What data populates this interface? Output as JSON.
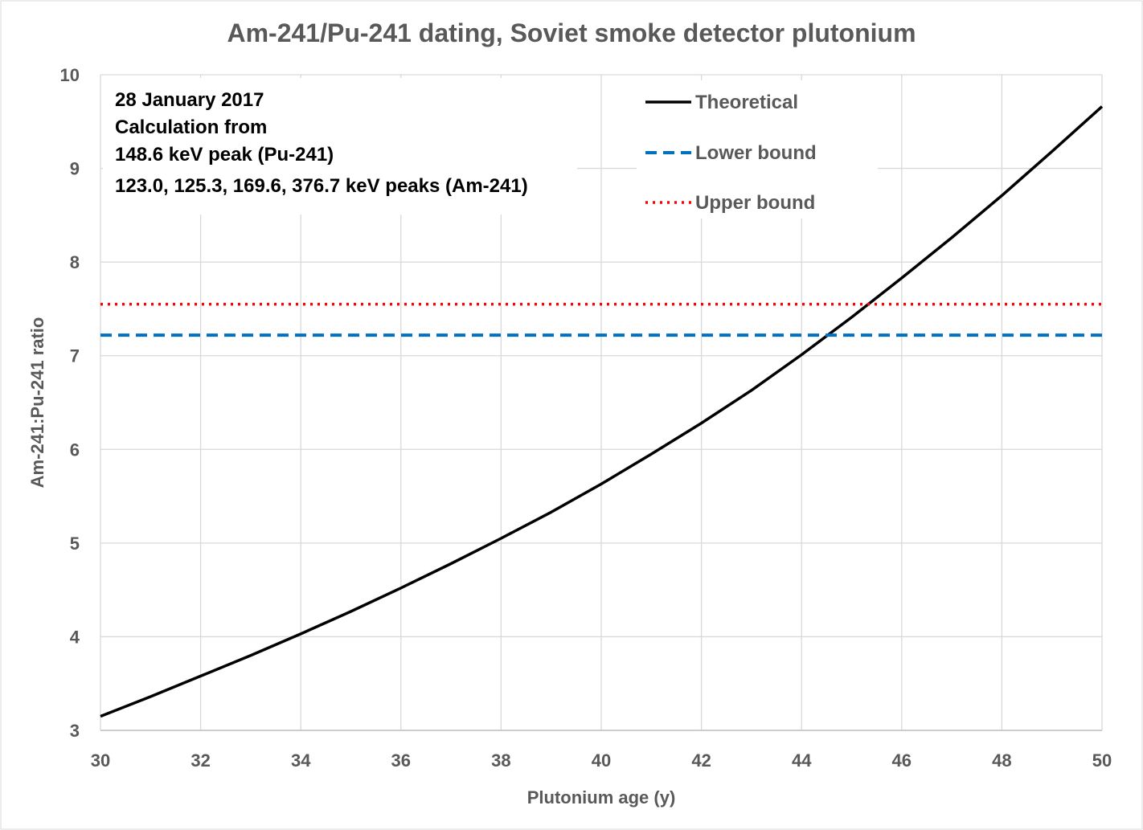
{
  "chart_data": {
    "type": "line",
    "title": "Am-241/Pu-241 dating, Soviet smoke detector plutonium",
    "xlabel": "Plutonium age (y)",
    "ylabel": "Am-241:Pu-241 ratio",
    "xlim": [
      30,
      50
    ],
    "ylim": [
      3,
      10
    ],
    "xticks": [
      30,
      32,
      34,
      36,
      38,
      40,
      42,
      44,
      46,
      48,
      50
    ],
    "yticks": [
      3,
      4,
      5,
      6,
      7,
      8,
      9,
      10
    ],
    "grid": true,
    "legend_position": "top-right",
    "annotation": [
      "28 January 2017",
      "Calculation from",
      "148.6 keV peak (Pu-241)",
      "123.0, 125.3, 169.6, 376.7 keV peaks (Am-241)"
    ],
    "series": [
      {
        "name": "Theoretical",
        "style": "solid",
        "color": "#000000",
        "x": [
          30,
          31,
          32,
          33,
          34,
          35,
          36,
          37,
          38,
          39,
          40,
          41,
          42,
          43,
          44,
          45,
          46,
          47,
          48,
          49,
          50
        ],
        "y": [
          3.15,
          3.36,
          3.58,
          3.8,
          4.03,
          4.27,
          4.52,
          4.78,
          5.05,
          5.33,
          5.63,
          5.95,
          6.28,
          6.63,
          7.01,
          7.41,
          7.83,
          8.26,
          8.71,
          9.18,
          9.66
        ]
      },
      {
        "name": "Lower bound",
        "style": "dashed",
        "color": "#0070C0",
        "x": [
          30,
          50
        ],
        "y": [
          7.22,
          7.22
        ]
      },
      {
        "name": "Upper bound",
        "style": "dotted",
        "color": "#FF0000",
        "x": [
          30,
          50
        ],
        "y": [
          7.55,
          7.55
        ]
      }
    ]
  }
}
